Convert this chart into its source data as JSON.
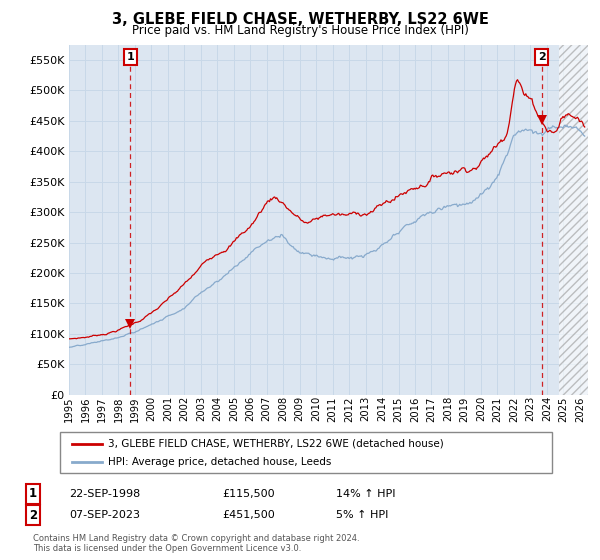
{
  "title": "3, GLEBE FIELD CHASE, WETHERBY, LS22 6WE",
  "subtitle": "Price paid vs. HM Land Registry's House Price Index (HPI)",
  "legend_line1": "3, GLEBE FIELD CHASE, WETHERBY, LS22 6WE (detached house)",
  "legend_line2": "HPI: Average price, detached house, Leeds",
  "label1_num": "1",
  "label1_date": "22-SEP-1998",
  "label1_price": "£115,500",
  "label1_hpi": "14% ↑ HPI",
  "label2_num": "2",
  "label2_date": "07-SEP-2023",
  "label2_price": "£451,500",
  "label2_hpi": "5% ↑ HPI",
  "footnote1": "Contains HM Land Registry data © Crown copyright and database right 2024.",
  "footnote2": "This data is licensed under the Open Government Licence v3.0.",
  "plot_bg_color": "#dce6f1",
  "grid_color": "#c8d8e8",
  "red_line_color": "#cc0000",
  "blue_line_color": "#88aacc",
  "vline_color": "#cc0000",
  "marker_color": "#cc0000",
  "ylim": [
    0,
    575000
  ],
  "yticks": [
    0,
    50000,
    100000,
    150000,
    200000,
    250000,
    300000,
    350000,
    400000,
    450000,
    500000,
    550000
  ],
  "sale1_year": 1998.72,
  "sale1_value": 115500,
  "sale2_year": 2023.68,
  "sale2_value": 451500,
  "xmin_year": 1995.0,
  "xmax_year": 2026.5,
  "future_shade_start": 2024.75,
  "xtick_years": [
    1995,
    1996,
    1997,
    1998,
    1999,
    2000,
    2001,
    2002,
    2003,
    2004,
    2005,
    2006,
    2007,
    2008,
    2009,
    2010,
    2011,
    2012,
    2013,
    2014,
    2015,
    2016,
    2017,
    2018,
    2019,
    2020,
    2021,
    2022,
    2023,
    2024,
    2025,
    2026
  ]
}
